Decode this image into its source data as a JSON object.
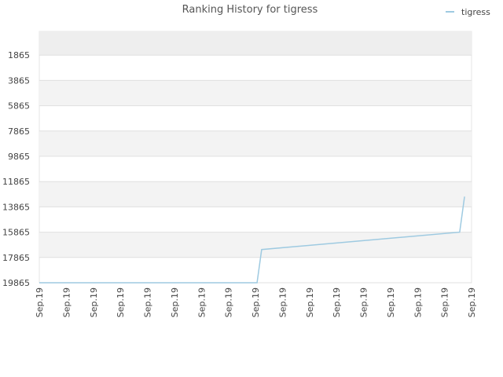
{
  "chart_data": {
    "type": "line",
    "title": "Ranking History for tigress",
    "categories": [
      "Sep.19",
      "Sep.19",
      "Sep.19",
      "Sep.19",
      "Sep.19",
      "Sep.19",
      "Sep.19",
      "Sep.19",
      "Sep.19",
      "Sep.19",
      "Sep.19",
      "Sep.19",
      "Sep.19",
      "Sep.19",
      "Sep.19",
      "Sep.19",
      "Sep.19"
    ],
    "xlim": [
      0,
      16
    ],
    "series": [
      {
        "name": "tigress",
        "color": "#9ecae1",
        "x": [
          0,
          8.06,
          8.23,
          15.56,
          15.74
        ],
        "values": [
          19865,
          19865,
          17240,
          15865,
          13053
        ]
      }
    ],
    "ylim": [
      19865,
      -10
    ],
    "y_inverted": true,
    "yticks": [
      1865,
      3865,
      5865,
      7865,
      9865,
      11865,
      13865,
      15865,
      17865,
      19865
    ],
    "grid": true,
    "legend": "top-right"
  }
}
